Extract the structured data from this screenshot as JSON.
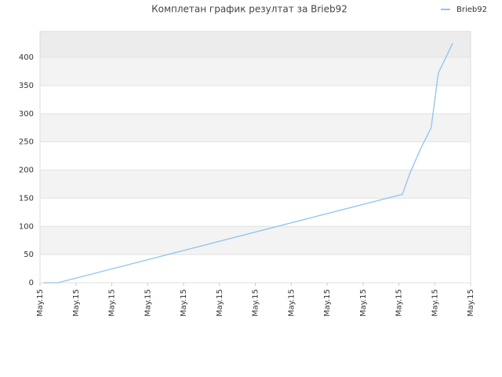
{
  "chart_data": {
    "type": "line",
    "title": "Комплетан график резултат за Brieb92",
    "x": [
      0.1,
      0.5,
      10.1,
      10.3,
      10.6,
      10.9,
      11.1,
      11.5
    ],
    "series": [
      {
        "name": "Brieb92",
        "color": "#8fc3ee",
        "values": [
          0,
          0,
          157,
          193,
          237,
          275,
          372,
          425
        ]
      }
    ],
    "xlim": [
      0,
      12
    ],
    "xticks": [
      {
        "value": 0,
        "label": "May.15"
      },
      {
        "value": 1,
        "label": "May.15"
      },
      {
        "value": 2,
        "label": "May.15"
      },
      {
        "value": 3,
        "label": "May.15"
      },
      {
        "value": 4,
        "label": "May.15"
      },
      {
        "value": 5,
        "label": "May.15"
      },
      {
        "value": 6,
        "label": "May.15"
      },
      {
        "value": 7,
        "label": "May.15"
      },
      {
        "value": 8,
        "label": "May.15"
      },
      {
        "value": 9,
        "label": "May.15"
      },
      {
        "value": 10,
        "label": "May.15"
      },
      {
        "value": 11,
        "label": "May.15"
      },
      {
        "value": 12,
        "label": "May.15"
      }
    ],
    "ylim": [
      0,
      446
    ],
    "yticks": [
      0,
      50,
      100,
      150,
      200,
      250,
      300,
      350,
      400
    ],
    "grid": true,
    "legend": "top-right"
  }
}
